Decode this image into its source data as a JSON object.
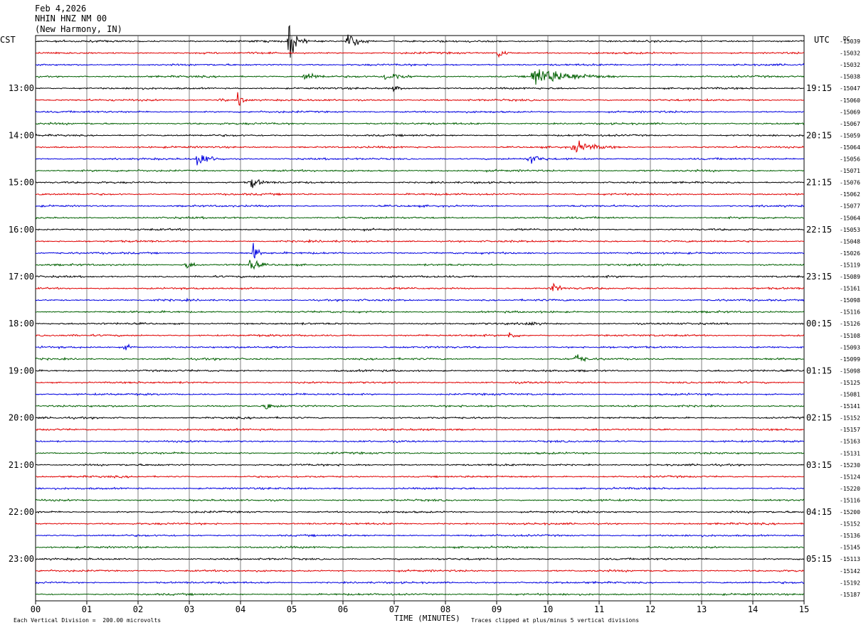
{
  "header": {
    "date": "Feb 4,2026",
    "station": "NHIN HNZ NM 00",
    "location": "(New Harmony, IN)"
  },
  "left_tz": "CST",
  "right_tz": "UTC",
  "corner_mark": "DC",
  "footer": {
    "scale_note": "Each Vertical Division =  200.00 microvolts",
    "clip_note": "Traces clipped at plus/minus 5 vertical divisions",
    "x_title": "TIME (MINUTES)"
  },
  "colors": {
    "trace_cycle": [
      "#000000",
      "#e00000",
      "#0000e0",
      "#006000"
    ],
    "grid": "#606060"
  },
  "chart_data": {
    "type": "line",
    "title": "Feb 4,2026 NHIN HNZ NM 00 (New Harmony, IN)",
    "xlabel": "TIME (MINUTES)",
    "xlim": [
      0,
      15
    ],
    "x_ticks": [
      "00",
      "01",
      "02",
      "03",
      "04",
      "05",
      "06",
      "07",
      "08",
      "09",
      "10",
      "11",
      "12",
      "13",
      "14",
      "15"
    ],
    "row_minutes": 15,
    "row_count": 48,
    "left_hour_labels": [
      {
        "row": 4,
        "text": "13:00"
      },
      {
        "row": 8,
        "text": "14:00"
      },
      {
        "row": 12,
        "text": "15:00"
      },
      {
        "row": 16,
        "text": "16:00"
      },
      {
        "row": 20,
        "text": "17:00"
      },
      {
        "row": 24,
        "text": "18:00"
      },
      {
        "row": 28,
        "text": "19:00"
      },
      {
        "row": 32,
        "text": "20:00"
      },
      {
        "row": 36,
        "text": "21:00"
      },
      {
        "row": 40,
        "text": "22:00"
      },
      {
        "row": 44,
        "text": "23:00"
      }
    ],
    "right_hour_labels": [
      {
        "row": 4,
        "text": "19:15"
      },
      {
        "row": 8,
        "text": "20:15"
      },
      {
        "row": 12,
        "text": "21:15"
      },
      {
        "row": 16,
        "text": "22:15"
      },
      {
        "row": 20,
        "text": "23:15"
      },
      {
        "row": 24,
        "text": "00:15"
      },
      {
        "row": 28,
        "text": "01:15"
      },
      {
        "row": 32,
        "text": "02:15"
      },
      {
        "row": 36,
        "text": "03:15"
      },
      {
        "row": 40,
        "text": "04:15"
      },
      {
        "row": 44,
        "text": "05:15"
      }
    ],
    "row_offsets": [
      "-15039",
      "-15032",
      "-15032",
      "-15038",
      "-15047",
      "-15060",
      "-15069",
      "-15067",
      "-15059",
      "-15064",
      "-15056",
      "-15071",
      "-15076",
      "-15062",
      "-15077",
      "-15064",
      "-15053",
      "-15048",
      "-15026",
      "-15119",
      "-15089",
      "-15161",
      "-15098",
      "-15116",
      "-15126",
      "-15108",
      "-15093",
      "-15099",
      "-15098",
      "-15125",
      "-15081",
      "-15141",
      "-15152",
      "-15157",
      "-15163",
      "-15131",
      "-15230",
      "-15124",
      "-15220",
      "-15116",
      "-15200",
      "-15152",
      "-15136",
      "-15145",
      "-15113",
      "-15142",
      "-15192",
      "-15187"
    ],
    "events": [
      {
        "row": 0,
        "minute": 4.95,
        "amplitude": 5.0,
        "duration": 0.35
      },
      {
        "row": 0,
        "minute": 6.1,
        "amplitude": 2.2,
        "duration": 0.5
      },
      {
        "row": 1,
        "minute": 9.05,
        "amplitude": 1.6,
        "duration": 0.25
      },
      {
        "row": 3,
        "minute": 5.25,
        "amplitude": 1.2,
        "duration": 0.6
      },
      {
        "row": 3,
        "minute": 6.85,
        "amplitude": 1.5,
        "duration": 0.6
      },
      {
        "row": 3,
        "minute": 9.7,
        "amplitude": 2.6,
        "duration": 1.7
      },
      {
        "row": 4,
        "minute": 7.0,
        "amplitude": 0.8,
        "duration": 0.3
      },
      {
        "row": 5,
        "minute": 3.95,
        "amplitude": 1.6,
        "duration": 0.3
      },
      {
        "row": 5,
        "minute": 3.6,
        "amplitude": 0.7,
        "duration": 0.2
      },
      {
        "row": 9,
        "minute": 10.5,
        "amplitude": 1.5,
        "duration": 0.9
      },
      {
        "row": 10,
        "minute": 3.15,
        "amplitude": 2.0,
        "duration": 0.6
      },
      {
        "row": 10,
        "minute": 9.65,
        "amplitude": 1.8,
        "duration": 0.35
      },
      {
        "row": 12,
        "minute": 4.2,
        "amplitude": 1.8,
        "duration": 0.35
      },
      {
        "row": 18,
        "minute": 4.25,
        "amplitude": 2.2,
        "duration": 0.25
      },
      {
        "row": 19,
        "minute": 4.2,
        "amplitude": 2.0,
        "duration": 0.3
      },
      {
        "row": 19,
        "minute": 2.95,
        "amplitude": 1.1,
        "duration": 0.35
      },
      {
        "row": 21,
        "minute": 10.1,
        "amplitude": 1.4,
        "duration": 0.3
      },
      {
        "row": 24,
        "minute": 9.6,
        "amplitude": 0.6,
        "duration": 0.4
      },
      {
        "row": 25,
        "minute": 9.25,
        "amplitude": 1.0,
        "duration": 0.3
      },
      {
        "row": 26,
        "minute": 1.75,
        "amplitude": 0.8,
        "duration": 0.25
      },
      {
        "row": 27,
        "minute": 10.55,
        "amplitude": 1.6,
        "duration": 0.3
      },
      {
        "row": 31,
        "minute": 4.5,
        "amplitude": 1.2,
        "duration": 0.3
      }
    ]
  }
}
